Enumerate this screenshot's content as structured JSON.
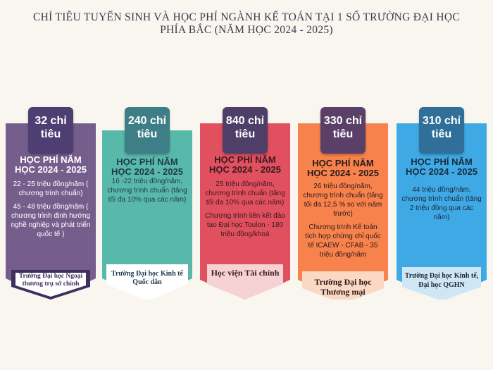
{
  "title_line1": "CHỈ TIÊU TUYỂN SINH VÀ HỌC PHÍ NGÀNH KẾ TOÁN TẠI 1 SỐ TRƯỜNG ĐẠI HỌC",
  "title_line2": "PHÍA BẮC (NĂM HỌC 2024 - 2025)",
  "cards": [
    {
      "quota": "32 chỉ tiêu",
      "heading": "HỌC PHÍ NĂM HỌC 2024 - 2025",
      "details": [
        "22 - 25 triệu đồng/năm ( chương trình chuẩn)",
        "45 - 48 triệu đồng/năm ( chương trình định hướng nghề nghiệp và phát triển quốc tế )"
      ],
      "school": "Trường Đại học Ngoại thương trụ sở chính",
      "color": "#765e8c"
    },
    {
      "quota": "240 chỉ tiêu",
      "heading": "HỌC PHÍ NĂM HỌC 2024 - 2025",
      "details": [
        "16 -22 triệu đồng/năm, chương trình chuẩn (tăng tối đa 10% qua các năm)"
      ],
      "school": "Trường Đại học Kinh tế Quốc dân",
      "color": "#58b9aa"
    },
    {
      "quota": "840 chỉ tiêu",
      "heading": "HỌC PHÍ NĂM HỌC 2024 - 2025",
      "details": [
        "25 triệu đồng/năm, chương trình chuẩn (tăng tối đa 10% qua các năm)",
        "Chương trình liên kết đào tạo Đại học Toulon - 180 triệu đồng/khoá"
      ],
      "school": "Học viện Tài chính",
      "color": "#e0505e"
    },
    {
      "quota": "330 chỉ tiêu",
      "heading": "HỌC PHÍ NĂM HỌC 2024 - 2025",
      "details": [
        "26 triệu đồng/năm, chương trình chuẩn (tăng tối đa 12,5 % so với năm trước)",
        "Chương trình Kế toán tích hợp chứng chỉ quốc tế ICAEW - CFAB - 35 triệu đồng/năm"
      ],
      "school": "Trường Đại học Thương mại",
      "color": "#f7824c"
    },
    {
      "quota": "310 chỉ tiêu",
      "heading": "HỌC PHÍ NĂM HỌC 2024 - 2025",
      "details": [
        "44 triệu đồng/năm, chương trình chuẩn (tăng 2 triệu đồng qua các năm)"
      ],
      "school": "Trường Đại học Kinh tế, Đại học QGHN",
      "color": "#3fa9e6"
    }
  ]
}
